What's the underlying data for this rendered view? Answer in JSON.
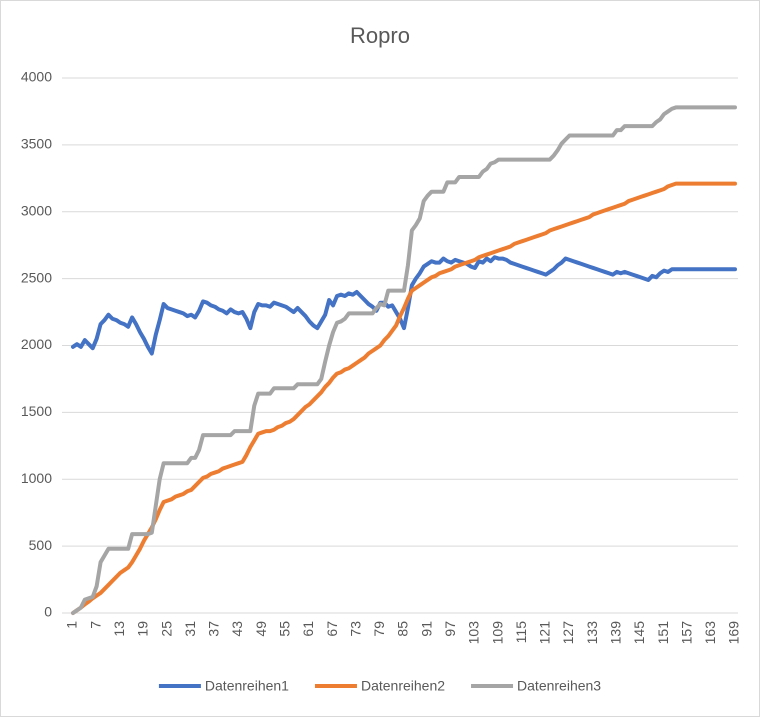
{
  "chart_data": {
    "type": "line",
    "title": "Ropro",
    "categories": [
      1,
      null,
      null,
      null,
      null,
      null,
      7,
      null,
      null,
      null,
      null,
      null,
      13,
      null,
      null,
      null,
      null,
      null,
      19,
      null,
      null,
      null,
      null,
      null,
      25,
      null,
      null,
      null,
      null,
      null,
      31,
      null,
      null,
      null,
      null,
      null,
      37,
      null,
      null,
      null,
      null,
      null,
      43,
      null,
      null,
      null,
      null,
      null,
      49,
      null,
      null,
      null,
      null,
      null,
      55,
      null,
      null,
      null,
      null,
      null,
      61,
      null,
      null,
      null,
      null,
      null,
      67,
      null,
      null,
      null,
      null,
      null,
      73,
      null,
      null,
      null,
      null,
      null,
      79,
      null,
      null,
      null,
      null,
      null,
      85,
      null,
      null,
      null,
      null,
      null,
      91,
      null,
      null,
      null,
      null,
      null,
      97,
      null,
      null,
      null,
      null,
      null,
      103,
      null,
      null,
      null,
      null,
      null,
      109,
      null,
      null,
      null,
      null,
      null,
      115,
      null,
      null,
      null,
      null,
      null,
      121,
      null,
      null,
      null,
      null,
      null,
      127,
      null,
      null,
      null,
      null,
      null,
      133,
      null,
      null,
      null,
      null,
      null,
      139,
      null,
      null,
      null,
      null,
      null,
      145,
      null,
      null,
      null,
      null,
      null,
      151,
      null,
      null,
      null,
      null,
      null,
      157,
      null,
      null,
      null,
      null,
      null,
      163,
      null,
      null,
      null,
      null,
      null,
      169
    ],
    "series": [
      {
        "name": "Datenreihen1",
        "color": "#4472c4",
        "values": [
          1990,
          2010,
          1990,
          2040,
          2010,
          1980,
          2050,
          2160,
          2190,
          2230,
          2200,
          2190,
          2170,
          2160,
          2140,
          2210,
          2160,
          2100,
          2050,
          1990,
          1940,
          2080,
          2190,
          2310,
          2280,
          2270,
          2260,
          2250,
          2240,
          2220,
          2230,
          2210,
          2260,
          2330,
          2320,
          2300,
          2290,
          2270,
          2260,
          2240,
          2270,
          2250,
          2240,
          2250,
          2200,
          2130,
          2250,
          2310,
          2300,
          2300,
          2290,
          2320,
          2310,
          2300,
          2290,
          2270,
          2250,
          2280,
          2250,
          2220,
          2180,
          2150,
          2130,
          2180,
          2230,
          2340,
          2300,
          2370,
          2380,
          2370,
          2390,
          2380,
          2400,
          2370,
          2340,
          2310,
          2290,
          2260,
          2320,
          2320,
          2290,
          2300,
          2250,
          2200,
          2130,
          2280,
          2450,
          2500,
          2540,
          2590,
          2610,
          2630,
          2620,
          2620,
          2650,
          2630,
          2620,
          2640,
          2630,
          2620,
          2610,
          2590,
          2580,
          2630,
          2620,
          2650,
          2630,
          2660,
          2650,
          2650,
          2640,
          2620,
          2610,
          2600,
          2590,
          2580,
          2570,
          2560,
          2550,
          2540,
          2530,
          2550,
          2570,
          2600,
          2620,
          2650,
          2640,
          2630,
          2620,
          2610,
          2600,
          2590,
          2580,
          2570,
          2560,
          2550,
          2540,
          2530,
          2550,
          2540,
          2550,
          2540,
          2530,
          2520,
          2510,
          2500,
          2490,
          2520,
          2510,
          2540,
          2560,
          2550,
          2570,
          2570,
          2570,
          2570,
          2570,
          2570,
          2570,
          2570,
          2570,
          2570,
          2570,
          2570,
          2570,
          2570,
          2570,
          2570,
          2570
        ]
      },
      {
        "name": "Datenreihen2",
        "color": "#ed7d31",
        "values": [
          0,
          20,
          40,
          65,
          85,
          110,
          130,
          150,
          180,
          210,
          240,
          270,
          300,
          320,
          340,
          380,
          430,
          480,
          540,
          590,
          640,
          700,
          770,
          830,
          840,
          850,
          870,
          880,
          890,
          910,
          920,
          950,
          980,
          1010,
          1020,
          1040,
          1050,
          1060,
          1080,
          1090,
          1100,
          1110,
          1120,
          1130,
          1180,
          1240,
          1290,
          1340,
          1350,
          1360,
          1360,
          1370,
          1390,
          1400,
          1420,
          1430,
          1450,
          1480,
          1510,
          1540,
          1560,
          1590,
          1620,
          1650,
          1690,
          1720,
          1760,
          1790,
          1800,
          1820,
          1830,
          1850,
          1870,
          1890,
          1910,
          1940,
          1960,
          1980,
          2000,
          2040,
          2070,
          2110,
          2150,
          2220,
          2280,
          2350,
          2410,
          2430,
          2450,
          2470,
          2490,
          2510,
          2520,
          2540,
          2550,
          2560,
          2570,
          2590,
          2600,
          2610,
          2620,
          2630,
          2640,
          2660,
          2670,
          2680,
          2690,
          2700,
          2710,
          2720,
          2730,
          2740,
          2760,
          2770,
          2780,
          2790,
          2800,
          2810,
          2820,
          2830,
          2840,
          2860,
          2870,
          2880,
          2890,
          2900,
          2910,
          2920,
          2930,
          2940,
          2950,
          2960,
          2980,
          2990,
          3000,
          3010,
          3020,
          3030,
          3040,
          3050,
          3060,
          3080,
          3090,
          3100,
          3110,
          3120,
          3130,
          3140,
          3150,
          3160,
          3170,
          3190,
          3200,
          3210,
          3210,
          3210,
          3210,
          3210,
          3210,
          3210,
          3210,
          3210,
          3210,
          3210,
          3210,
          3210,
          3210,
          3210,
          3210
        ]
      },
      {
        "name": "Datenreihen3",
        "color": "#a5a5a5",
        "values": [
          0,
          20,
          40,
          100,
          110,
          120,
          200,
          380,
          430,
          480,
          480,
          480,
          480,
          480,
          480,
          590,
          590,
          590,
          590,
          590,
          600,
          800,
          1000,
          1120,
          1120,
          1120,
          1120,
          1120,
          1120,
          1120,
          1160,
          1160,
          1220,
          1330,
          1330,
          1330,
          1330,
          1330,
          1330,
          1330,
          1330,
          1360,
          1360,
          1360,
          1360,
          1360,
          1550,
          1640,
          1640,
          1640,
          1640,
          1680,
          1680,
          1680,
          1680,
          1680,
          1680,
          1710,
          1710,
          1710,
          1710,
          1710,
          1710,
          1750,
          1880,
          2000,
          2100,
          2170,
          2180,
          2200,
          2240,
          2240,
          2240,
          2240,
          2240,
          2240,
          2240,
          2280,
          2310,
          2300,
          2410,
          2410,
          2410,
          2410,
          2410,
          2600,
          2860,
          2900,
          2950,
          3080,
          3120,
          3150,
          3150,
          3150,
          3150,
          3220,
          3220,
          3220,
          3260,
          3260,
          3260,
          3260,
          3260,
          3260,
          3300,
          3320,
          3360,
          3370,
          3390,
          3390,
          3390,
          3390,
          3390,
          3390,
          3390,
          3390,
          3390,
          3390,
          3390,
          3390,
          3390,
          3390,
          3420,
          3460,
          3510,
          3540,
          3570,
          3570,
          3570,
          3570,
          3570,
          3570,
          3570,
          3570,
          3570,
          3570,
          3570,
          3570,
          3610,
          3610,
          3640,
          3640,
          3640,
          3640,
          3640,
          3640,
          3640,
          3640,
          3670,
          3690,
          3730,
          3750,
          3770,
          3780,
          3780,
          3780,
          3780,
          3780,
          3780,
          3780,
          3780,
          3780,
          3780,
          3780,
          3780,
          3780,
          3780,
          3780,
          3780
        ]
      }
    ],
    "ylim": [
      0,
      4000
    ],
    "yticks": [
      0,
      500,
      1000,
      1500,
      2000,
      2500,
      3000,
      3500,
      4000
    ],
    "grid": true,
    "legend": "bottom"
  }
}
